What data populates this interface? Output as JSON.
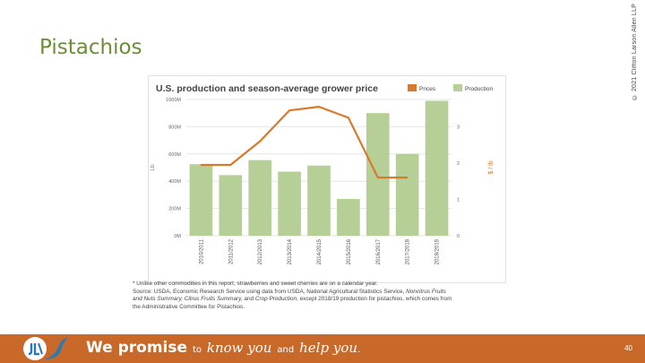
{
  "slide": {
    "title": "Pistachios",
    "copyright": "© 2021 Clifton Larson Allen LLP",
    "page_number": "40"
  },
  "chart_data": {
    "type": "bar",
    "title": "U.S. production and season-average grower price",
    "categories": [
      "2010/2011",
      "2011/2012",
      "2012/2013",
      "2013/2014",
      "2014/2015",
      "2015/2016",
      "2016/2017",
      "2017/2018",
      "2018/2019"
    ],
    "series": [
      {
        "name": "Production",
        "kind": "bar",
        "axis": "left",
        "color": "#b5cf96",
        "values": [
          525,
          445,
          555,
          470,
          515,
          270,
          900,
          600,
          990
        ]
      },
      {
        "name": "Prices",
        "kind": "line",
        "axis": "right",
        "color": "#d9792c",
        "values": [
          1.95,
          1.95,
          2.6,
          3.45,
          3.55,
          3.25,
          1.6,
          1.6,
          null
        ]
      }
    ],
    "ylabel": "Lb",
    "ylim": [
      0,
      1000
    ],
    "yticks": [
      "0M",
      "200M",
      "400M",
      "600M",
      "800M",
      "1000M"
    ],
    "y2label": "$ / lb",
    "y2lim": [
      0,
      3.75
    ],
    "y2ticks": [
      "0",
      "1",
      "2",
      "3"
    ],
    "legend": [
      {
        "label": "Prices",
        "color": "#d9792c"
      },
      {
        "label": "Production",
        "color": "#b5cf96"
      }
    ],
    "legend_position": "top-right",
    "grid": true
  },
  "footnote": {
    "line1": "* Unlike other commodities in this report, strawberries and sweet cherries are on a calendar year.",
    "line2_prefix": "Source: USDA, Economic Research Service using data from USDA, National Agricultural Statistics Service, ",
    "line2_italic": "Noncitrus Fruits",
    "line3_italic_a": "and Nuts Summary, Citrus Fruits Summary,",
    "line3_mid": " and ",
    "line3_italic_b": "Crop Production",
    "line3_suffix": ", except 2018/19 production for pistachios, which comes from",
    "line4": "the Administrative Committee for Pistachios."
  },
  "footer": {
    "tagline_bold_1": "We promise",
    "tagline_small_1": "to",
    "tagline_script_1": "know you",
    "tagline_small_2": "and",
    "tagline_script_2": "help you",
    "tagline_end": ".",
    "bar_color": "#c8692a"
  }
}
